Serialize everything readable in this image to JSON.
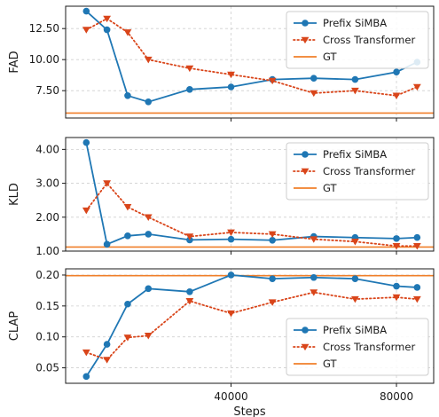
{
  "chart_data": {
    "type": "line",
    "xlabel": "Steps",
    "x_ticks": [
      40000,
      80000
    ],
    "x_tick_labels": [
      "40000",
      "80000"
    ],
    "xlim": [
      0,
      89000
    ],
    "grid": true,
    "legend_position": "upper-right",
    "series_styles": [
      {
        "name": "Prefix SiMBA",
        "color": "#1f77b4",
        "line": "solid",
        "marker": "circle"
      },
      {
        "name": "Cross Transformer",
        "color": "#d9451a",
        "line": "dotted",
        "marker": "triangle-down"
      },
      {
        "name": "GT",
        "color": "#f07f2a",
        "line": "solid",
        "marker": "none"
      }
    ],
    "panels": [
      {
        "ylabel": "FAD",
        "ylim": [
          5.3,
          14.3
        ],
        "y_ticks": [
          7.5,
          10.0,
          12.5
        ],
        "y_tick_labels": [
          "7.50",
          "10.00",
          "12.50"
        ],
        "series": [
          {
            "name": "Prefix SiMBA",
            "x": [
              5000,
              10000,
              15000,
              20000,
              30000,
              40000,
              50000,
              60000,
              70000,
              80000,
              85000
            ],
            "values": [
              13.9,
              12.4,
              7.1,
              6.6,
              7.6,
              7.8,
              8.4,
              8.5,
              8.4,
              9.0,
              9.8
            ]
          },
          {
            "name": "Cross Transformer",
            "x": [
              5000,
              10000,
              15000,
              20000,
              30000,
              40000,
              50000,
              60000,
              70000,
              80000,
              85000
            ],
            "values": [
              12.4,
              13.3,
              12.2,
              10.0,
              9.3,
              8.8,
              8.3,
              7.3,
              7.5,
              7.1,
              7.8
            ]
          }
        ],
        "gt": 5.7
      },
      {
        "ylabel": "KLD",
        "ylim": [
          1.0,
          4.35
        ],
        "y_ticks": [
          1.0,
          2.0,
          3.0,
          4.0
        ],
        "y_tick_labels": [
          "1.00",
          "2.00",
          "3.00",
          "4.00"
        ],
        "series": [
          {
            "name": "Prefix SiMBA",
            "x": [
              5000,
              10000,
              15000,
              20000,
              30000,
              40000,
              50000,
              60000,
              70000,
              80000,
              85000
            ],
            "values": [
              4.2,
              1.2,
              1.45,
              1.5,
              1.33,
              1.35,
              1.32,
              1.43,
              1.4,
              1.37,
              1.4
            ]
          },
          {
            "name": "Cross Transformer",
            "x": [
              5000,
              10000,
              15000,
              20000,
              30000,
              40000,
              50000,
              60000,
              70000,
              80000,
              85000
            ],
            "values": [
              2.2,
              3.0,
              2.3,
              2.0,
              1.43,
              1.55,
              1.5,
              1.35,
              1.28,
              1.15,
              1.15
            ]
          }
        ],
        "gt": 1.12
      },
      {
        "ylabel": "CLAP",
        "ylim": [
          0.025,
          0.21
        ],
        "y_ticks": [
          0.05,
          0.1,
          0.15,
          0.2
        ],
        "y_tick_labels": [
          "0.05",
          "0.10",
          "0.15",
          "0.20"
        ],
        "series": [
          {
            "name": "Prefix SiMBA",
            "x": [
              5000,
              10000,
              15000,
              20000,
              30000,
              40000,
              50000,
              60000,
              70000,
              80000,
              85000
            ],
            "values": [
              0.036,
              0.088,
              0.153,
              0.178,
              0.173,
              0.2,
              0.194,
              0.196,
              0.194,
              0.182,
              0.18
            ]
          },
          {
            "name": "Cross Transformer",
            "x": [
              5000,
              10000,
              15000,
              20000,
              30000,
              40000,
              50000,
              60000,
              70000,
              80000,
              85000
            ],
            "values": [
              0.075,
              0.063,
              0.099,
              0.102,
              0.158,
              0.138,
              0.156,
              0.172,
              0.161,
              0.164,
              0.161
            ]
          }
        ],
        "gt": 0.199
      }
    ]
  }
}
